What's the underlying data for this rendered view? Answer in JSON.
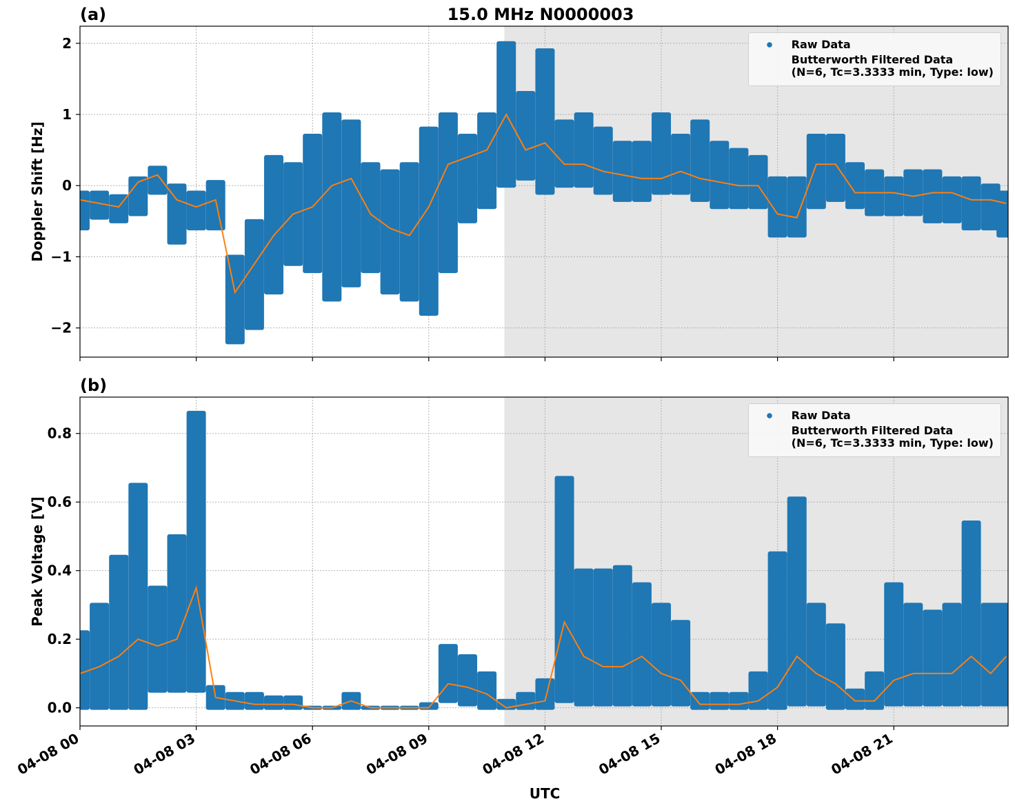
{
  "chart_data": [
    {
      "type": "scatter-line",
      "title": "15.0 MHz N0000003",
      "panel_label": "(a)",
      "ylabel": "Doppler Shift [Hz]",
      "x": [
        0,
        0.5,
        1,
        1.5,
        2,
        2.5,
        3,
        3.5,
        4,
        4.5,
        5,
        5.5,
        6,
        6.5,
        7,
        7.5,
        8,
        8.5,
        9,
        9.5,
        10,
        10.5,
        11,
        11.5,
        12,
        12.5,
        13,
        13.5,
        14,
        14.5,
        15,
        15.5,
        16,
        16.5,
        17,
        17.5,
        18,
        18.5,
        19,
        19.5,
        20,
        20.5,
        21,
        21.5,
        22,
        22.5,
        23,
        23.5,
        23.9
      ],
      "xlim": [
        0,
        23.95
      ],
      "xticks": [
        0,
        3,
        6,
        9,
        12,
        15,
        18,
        21
      ],
      "ylim": [
        -2.41,
        2.24
      ],
      "yticks": [
        {
          "value": -2,
          "label": "−2"
        },
        {
          "value": -1,
          "label": "−1"
        },
        0,
        1,
        2
      ],
      "grid": true,
      "legend": "upper right",
      "shaded_xrange": [
        10.95,
        23.95
      ],
      "shade_color": "#e6e6e6",
      "series": [
        {
          "name": "Raw Data",
          "color": "#1f77b4",
          "marker": "dot",
          "high": [
            -0.1,
            -0.1,
            -0.15,
            0.1,
            0.25,
            0.0,
            -0.1,
            0.05,
            -1.0,
            -0.5,
            0.4,
            0.3,
            0.7,
            1.0,
            0.9,
            0.3,
            0.2,
            0.3,
            0.8,
            1.0,
            0.7,
            1.0,
            2.0,
            1.3,
            1.9,
            0.9,
            1.0,
            0.8,
            0.6,
            0.6,
            1.0,
            0.7,
            0.9,
            0.6,
            0.5,
            0.4,
            0.1,
            0.1,
            0.7,
            0.7,
            0.3,
            0.2,
            0.1,
            0.2,
            0.2,
            0.1,
            0.1,
            0.0,
            -0.1
          ],
          "low": [
            -0.6,
            -0.45,
            -0.5,
            -0.4,
            -0.1,
            -0.8,
            -0.6,
            -0.6,
            -2.2,
            -2.0,
            -1.5,
            -1.1,
            -1.2,
            -1.6,
            -1.4,
            -1.2,
            -1.5,
            -1.6,
            -1.8,
            -1.2,
            -0.5,
            -0.3,
            0.0,
            0.1,
            -0.1,
            0.0,
            0.0,
            -0.1,
            -0.2,
            -0.2,
            -0.1,
            -0.1,
            -0.2,
            -0.3,
            -0.3,
            -0.3,
            -0.7,
            -0.7,
            -0.3,
            -0.2,
            -0.3,
            -0.4,
            -0.4,
            -0.4,
            -0.5,
            -0.5,
            -0.6,
            -0.6,
            -0.7
          ]
        },
        {
          "name": "Butterworth Filtered Data\n(N=6, Tc=3.3333 min, Type: low)",
          "color": "#ff7f0e",
          "marker": "line",
          "values": [
            -0.2,
            -0.25,
            -0.3,
            0.05,
            0.15,
            -0.2,
            -0.3,
            -0.2,
            -1.5,
            -1.1,
            -0.7,
            -0.4,
            -0.3,
            0.0,
            0.1,
            -0.4,
            -0.6,
            -0.7,
            -0.3,
            0.3,
            0.4,
            0.5,
            1.0,
            0.5,
            0.6,
            0.3,
            0.3,
            0.2,
            0.15,
            0.1,
            0.1,
            0.2,
            0.1,
            0.05,
            0.0,
            0.0,
            -0.4,
            -0.45,
            0.3,
            0.3,
            -0.1,
            -0.1,
            -0.1,
            -0.15,
            -0.1,
            -0.1,
            -0.2,
            -0.2,
            -0.25
          ]
        }
      ]
    },
    {
      "type": "scatter-line",
      "panel_label": "(b)",
      "ylabel": "Peak Voltage [V]",
      "xlabel": "UTC",
      "x": [
        0,
        0.5,
        1,
        1.5,
        2,
        2.5,
        3,
        3.5,
        4,
        4.5,
        5,
        5.5,
        6,
        6.5,
        7,
        7.5,
        8,
        8.5,
        9,
        9.5,
        10,
        10.5,
        11,
        11.5,
        12,
        12.5,
        13,
        13.5,
        14,
        14.5,
        15,
        15.5,
        16,
        16.5,
        17,
        17.5,
        18,
        18.5,
        19,
        19.5,
        20,
        20.5,
        21,
        21.5,
        22,
        22.5,
        23,
        23.5,
        23.9
      ],
      "xlim": [
        0,
        23.95
      ],
      "xticks": [
        {
          "value": 0,
          "label": "04-08 00"
        },
        {
          "value": 3,
          "label": "04-08 03"
        },
        {
          "value": 6,
          "label": "04-08 06"
        },
        {
          "value": 9,
          "label": "04-08 09"
        },
        {
          "value": 12,
          "label": "04-08 12"
        },
        {
          "value": 15,
          "label": "04-08 15"
        },
        {
          "value": 18,
          "label": "04-08 18"
        },
        {
          "value": 21,
          "label": "04-08 21"
        }
      ],
      "ylim": [
        -0.053,
        0.906
      ],
      "yticks": [
        {
          "value": 0,
          "label": "0.0"
        },
        0.2,
        0.4,
        0.6,
        0.8
      ],
      "grid": true,
      "legend": "upper right",
      "shaded_xrange": [
        10.95,
        23.95
      ],
      "shade_color": "#e6e6e6",
      "series": [
        {
          "name": "Raw Data",
          "color": "#1f77b4",
          "marker": "dot",
          "high": [
            0.22,
            0.3,
            0.44,
            0.65,
            0.35,
            0.5,
            0.86,
            0.06,
            0.04,
            0.04,
            0.03,
            0.03,
            0.0,
            0.0,
            0.04,
            0.0,
            0.0,
            0.0,
            0.01,
            0.18,
            0.15,
            0.1,
            0.02,
            0.04,
            0.08,
            0.67,
            0.4,
            0.4,
            0.41,
            0.36,
            0.3,
            0.25,
            0.04,
            0.04,
            0.04,
            0.1,
            0.45,
            0.61,
            0.3,
            0.24,
            0.05,
            0.1,
            0.36,
            0.3,
            0.28,
            0.3,
            0.54,
            0.3,
            0.3
          ],
          "low": [
            0.0,
            0.0,
            0.0,
            0.0,
            0.05,
            0.05,
            0.05,
            0.0,
            0.0,
            0.0,
            0.0,
            0.0,
            0.0,
            0.0,
            0.0,
            0.0,
            0.0,
            0.0,
            0.0,
            0.02,
            0.01,
            0.0,
            0.0,
            0.0,
            0.0,
            0.02,
            0.01,
            0.01,
            0.01,
            0.01,
            0.01,
            0.01,
            0.0,
            0.0,
            0.0,
            0.0,
            0.0,
            0.01,
            0.01,
            0.0,
            0.0,
            0.0,
            0.01,
            0.01,
            0.01,
            0.01,
            0.01,
            0.01,
            0.01
          ]
        },
        {
          "name": "Butterworth Filtered Data\n(N=6, Tc=3.3333 min, Type: low)",
          "color": "#ff7f0e",
          "marker": "line",
          "values": [
            0.1,
            0.12,
            0.15,
            0.2,
            0.18,
            0.2,
            0.35,
            0.03,
            0.02,
            0.01,
            0.01,
            0.01,
            0.0,
            0.0,
            0.02,
            0.0,
            0.0,
            0.0,
            0.0,
            0.07,
            0.06,
            0.04,
            0.0,
            0.01,
            0.02,
            0.25,
            0.15,
            0.12,
            0.12,
            0.15,
            0.1,
            0.08,
            0.01,
            0.01,
            0.01,
            0.02,
            0.06,
            0.15,
            0.1,
            0.07,
            0.02,
            0.02,
            0.08,
            0.1,
            0.1,
            0.1,
            0.15,
            0.1,
            0.15
          ]
        }
      ]
    }
  ]
}
